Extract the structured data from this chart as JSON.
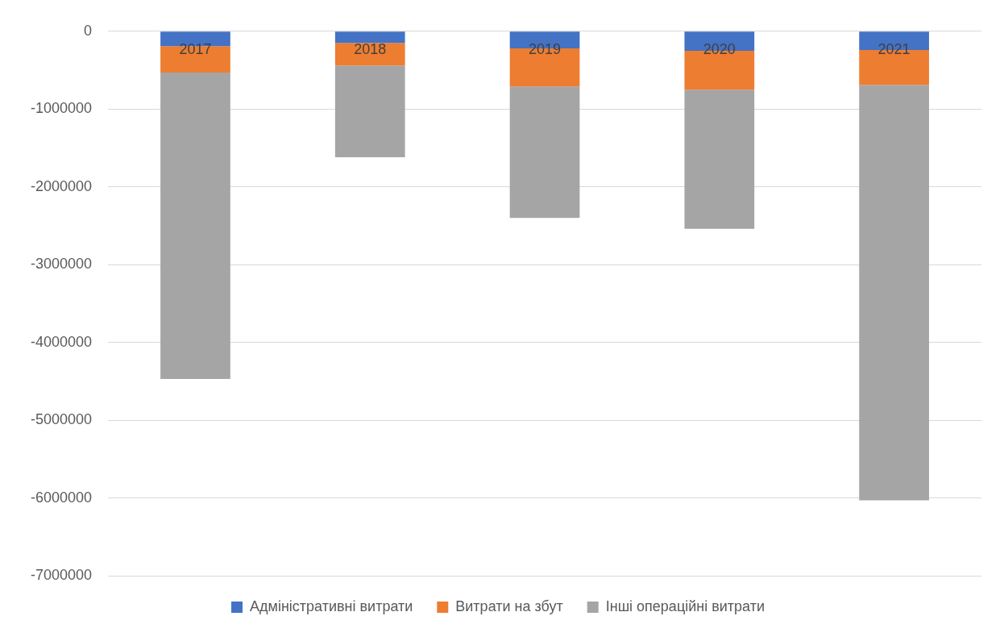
{
  "chart_data": {
    "type": "bar",
    "stacked": true,
    "categories": [
      "2017",
      "2018",
      "2019",
      "2020",
      "2021"
    ],
    "series": [
      {
        "name": "Адміністративні витрати",
        "color": "#4472c4",
        "values": [
          -190000,
          -150000,
          -220000,
          -250000,
          -240000
        ]
      },
      {
        "name": "Витрати на збут",
        "color": "#ed7d31",
        "values": [
          -340000,
          -290000,
          -490000,
          -500000,
          -450000
        ]
      },
      {
        "name": "Інші операційні витрати",
        "color": "#a5a5a5",
        "values": [
          -3940000,
          -1180000,
          -1690000,
          -1790000,
          -5340000
        ]
      }
    ],
    "ylim": [
      -7000000,
      0
    ],
    "yticks": [
      -7000000,
      -6000000,
      -5000000,
      -4000000,
      -3000000,
      -2000000,
      -1000000,
      0
    ],
    "grid": "y",
    "legend": "bottom"
  }
}
